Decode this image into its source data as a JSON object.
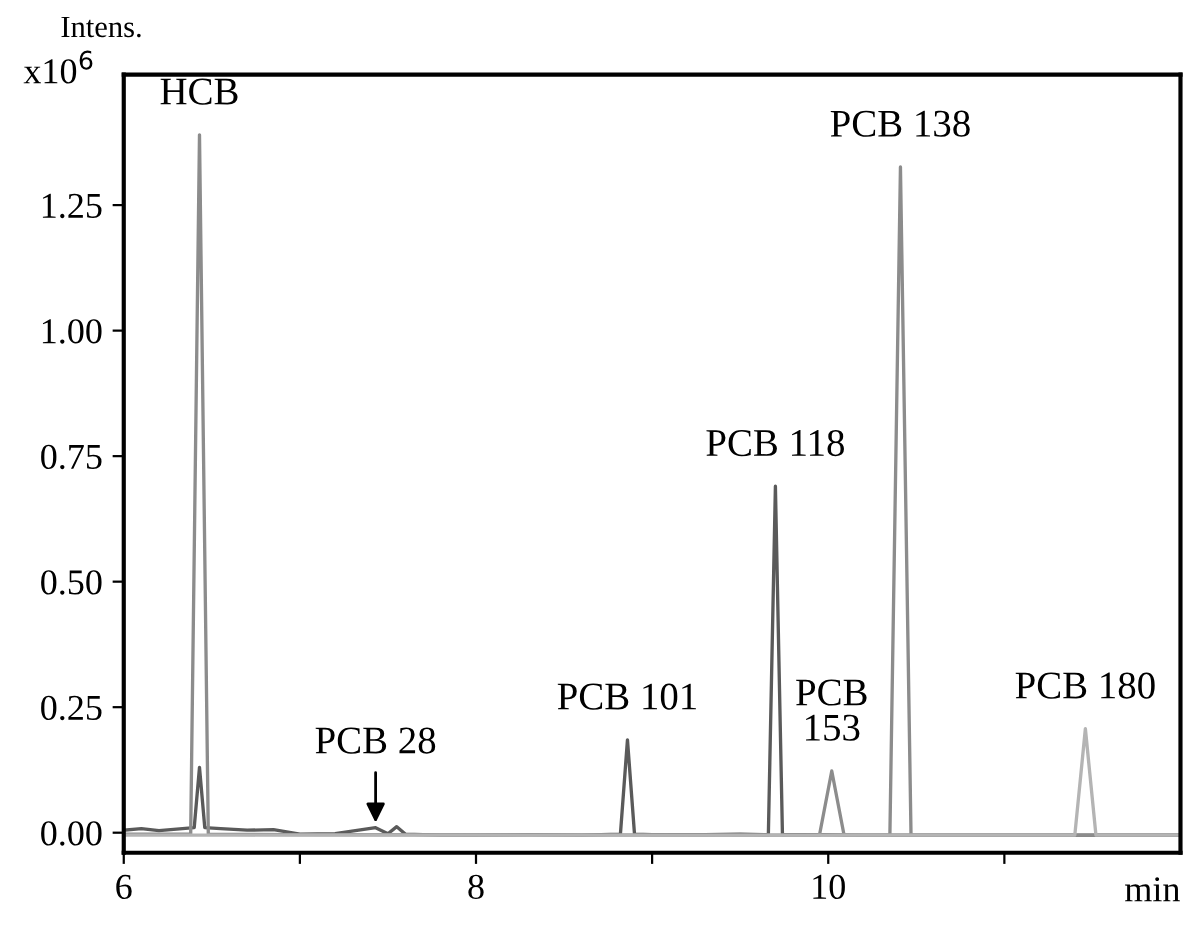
{
  "chart_data": {
    "type": "line",
    "ylabel": "Intens.",
    "xlabel": "min",
    "xlim": [
      6,
      12
    ],
    "xticks": [
      6,
      {
        "value": 7,
        "label": null
      },
      8,
      {
        "value": 9,
        "label": null
      },
      10,
      {
        "value": 11,
        "label": null
      }
    ],
    "ylim": [
      -0.04,
      1.51
    ],
    "yticks": [
      {
        "value": 0,
        "label": "0.00"
      },
      {
        "value": 0.25,
        "label": "0.25"
      },
      {
        "value": 0.5,
        "label": "0.50"
      },
      {
        "value": 0.75,
        "label": "0.75"
      },
      {
        "value": 1.0,
        "label": "1.00"
      },
      {
        "value": 1.25,
        "label": "1.25"
      }
    ],
    "grid": false,
    "legend": false,
    "marker": "none",
    "line_style": "solid",
    "series": [
      {
        "color": "#5a5a5a",
        "x": [
          6.0,
          6.1,
          6.2,
          6.3,
          6.4,
          6.43,
          6.46,
          6.55,
          6.7,
          6.85,
          7.0,
          7.2,
          7.43,
          7.5,
          7.55,
          7.6,
          7.8,
          8.0,
          8.3,
          8.6,
          8.82,
          8.86,
          8.9,
          9.0,
          9.3,
          9.5,
          9.66,
          9.7,
          9.74,
          9.85,
          10.2,
          10.6,
          11.0,
          11.5,
          12.0
        ],
        "values": [
          0.005,
          0.008,
          0.004,
          0.007,
          0.01,
          0.13,
          0.01,
          0.008,
          0.005,
          0.006,
          -0.003,
          -0.002,
          0.01,
          -0.002,
          0.012,
          -0.003,
          -0.005,
          -0.005,
          -0.004,
          -0.005,
          -0.003,
          0.185,
          -0.003,
          -0.004,
          -0.004,
          -0.003,
          -0.004,
          0.69,
          -0.004,
          -0.004,
          -0.005,
          -0.005,
          -0.005,
          -0.005,
          -0.005
        ]
      },
      {
        "color": "#8c8c8c",
        "x": [
          6.0,
          6.38,
          6.43,
          6.48,
          7.0,
          9.95,
          10.02,
          10.09,
          10.35,
          10.41,
          10.47,
          11.0,
          12.0
        ],
        "values": [
          -0.003,
          -0.003,
          1.39,
          -0.003,
          -0.004,
          -0.005,
          0.123,
          -0.005,
          -0.005,
          1.326,
          -0.005,
          -0.005,
          -0.005
        ]
      },
      {
        "color": "#b4b4b4",
        "x": [
          6.0,
          11.0,
          11.4,
          11.46,
          11.52,
          12.0
        ],
        "values": [
          -0.005,
          -0.005,
          -0.005,
          0.207,
          -0.005,
          -0.005
        ]
      }
    ],
    "annotations": [
      "x10$^{6}$",
      {
        "text": "HCB",
        "x": 6.43,
        "y": 1.39
      },
      {
        "text": "PCB 28",
        "x": 7.43,
        "y": 0.01
      },
      {
        "text": "PCB 101",
        "x": 8.86,
        "y": 0.185
      },
      {
        "text": "PCB 118",
        "x": 9.7,
        "y": 0.69
      },
      {
        "text": "PCB\n153",
        "x": 10.02,
        "y": 0.123
      },
      {
        "text": "PCB 138",
        "x": 10.41,
        "y": 1.326
      },
      {
        "text": "PCB 180",
        "x": 11.46,
        "y": 0.207
      }
    ]
  }
}
